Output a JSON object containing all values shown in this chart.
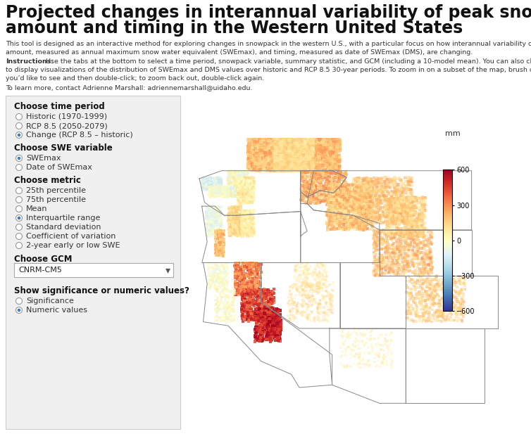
{
  "title_line1": "Projected changes in interannual variability of peak snowpack",
  "title_line2": "amount and timing in the Western United States",
  "title_fontsize": 17,
  "desc1": "This tool is designed as an interactive method for exploring changes in snowpack in the western U.S., with a particular focus on how interannual variability of snowpack",
  "desc1b": "amount, measured as annual maximum snow water equivalent (SWEmax), and timing, measured as date of SWEmax (DMS), are changing.",
  "instr_bold": "Instructions:",
  "instr_rest": " Use the tabs at the bottom to select a time period, snowpack variable, summary statistic, and GCM (including a 10-model mean). You can also click on the map",
  "instr2": "to display visualizations of the distribution of SWEmax and DMS values over historic and RCP 8.5 30-year periods. To zoom in on a subset of the map, brush over the area",
  "instr3": "you’d like to see and then double-click; to zoom back out, double-click again.",
  "contact": "To learn more, contact Adrienne Marshall: adriennemarshall@uidaho.edu.",
  "panel_bg": "#f0f0f0",
  "panel_border": "#cccccc",
  "section_headers": [
    "Choose time period",
    "Choose SWE variable",
    "Choose metric",
    "Choose GCM",
    "Show significance or numeric values?"
  ],
  "time_period_options": [
    "Historic (1970-1999)",
    "RCP 8.5 (2050-2079)",
    "Change (RCP 8.5 – historic)"
  ],
  "time_period_selected": 2,
  "swe_options": [
    "SWEmax",
    "Date of SWEmax"
  ],
  "swe_selected": 0,
  "metric_options": [
    "25th percentile",
    "75th percentile",
    "Mean",
    "Interquartile range",
    "Standard deviation",
    "Coefficient of variation",
    "2-year early or low SWE"
  ],
  "metric_selected": 3,
  "gcm_value": "CNRM-CM5",
  "sig_options": [
    "Significance",
    "Numeric values"
  ],
  "sig_selected": 1,
  "colorbar_label": "mm",
  "colorbar_ticks": [
    600,
    300,
    0,
    -300,
    -600
  ],
  "bg_color": "#ffffff"
}
